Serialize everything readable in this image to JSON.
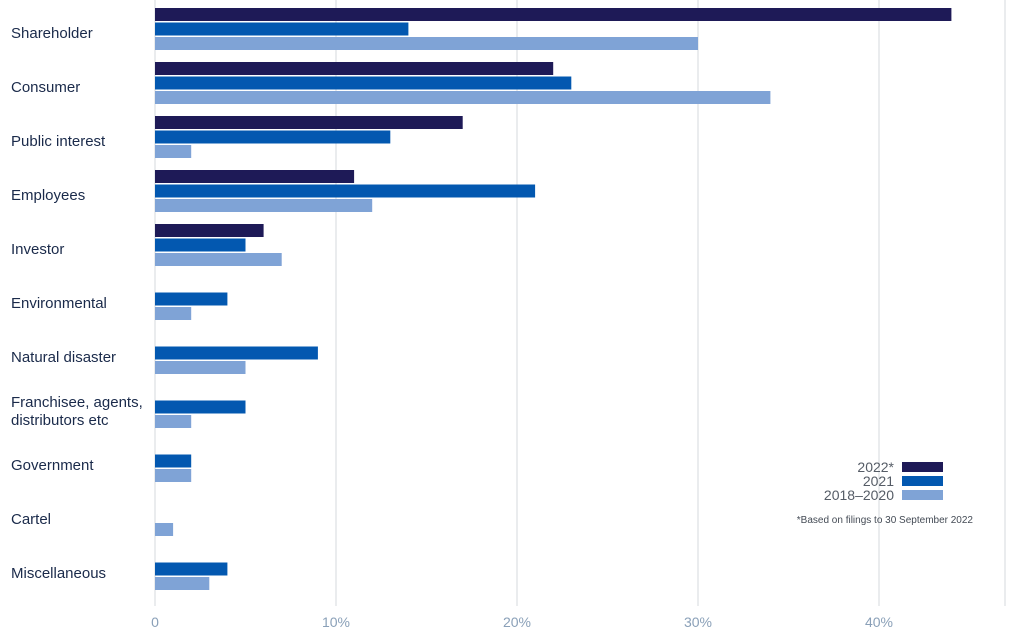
{
  "chart_data": {
    "type": "bar",
    "orientation": "horizontal",
    "categories": [
      [
        "Shareholder"
      ],
      [
        "Consumer"
      ],
      [
        "Public interest"
      ],
      [
        "Employees"
      ],
      [
        "Investor"
      ],
      [
        "Environmental"
      ],
      [
        "Natural disaster"
      ],
      [
        "Franchisee, agents,",
        "distributors etc"
      ],
      [
        "Government"
      ],
      [
        "Cartel"
      ],
      [
        "Miscellaneous"
      ]
    ],
    "series": [
      {
        "name": "2022*",
        "color": "#1e1a57",
        "values": [
          44,
          22,
          17,
          11,
          6,
          null,
          null,
          null,
          null,
          null,
          null
        ]
      },
      {
        "name": "2021",
        "color": "#0358b0",
        "values": [
          14,
          23,
          13,
          21,
          5,
          4,
          9,
          5,
          2,
          null,
          4
        ]
      },
      {
        "name": "2018–2020",
        "color": "#7fa3d6",
        "values": [
          30,
          34,
          2,
          12,
          7,
          2,
          5,
          2,
          2,
          1,
          3
        ]
      }
    ],
    "xlim": [
      0,
      45
    ],
    "xticks": [
      {
        "value": 0,
        "label": "0"
      },
      {
        "value": 10,
        "label": "10%"
      },
      {
        "value": 20,
        "label": "20%"
      },
      {
        "value": 30,
        "label": "30%"
      },
      {
        "value": 40,
        "label": "40%"
      }
    ],
    "grid": true,
    "legend_position": "bottom-right",
    "footnote": "*Based on filings to 30 September 2022"
  }
}
